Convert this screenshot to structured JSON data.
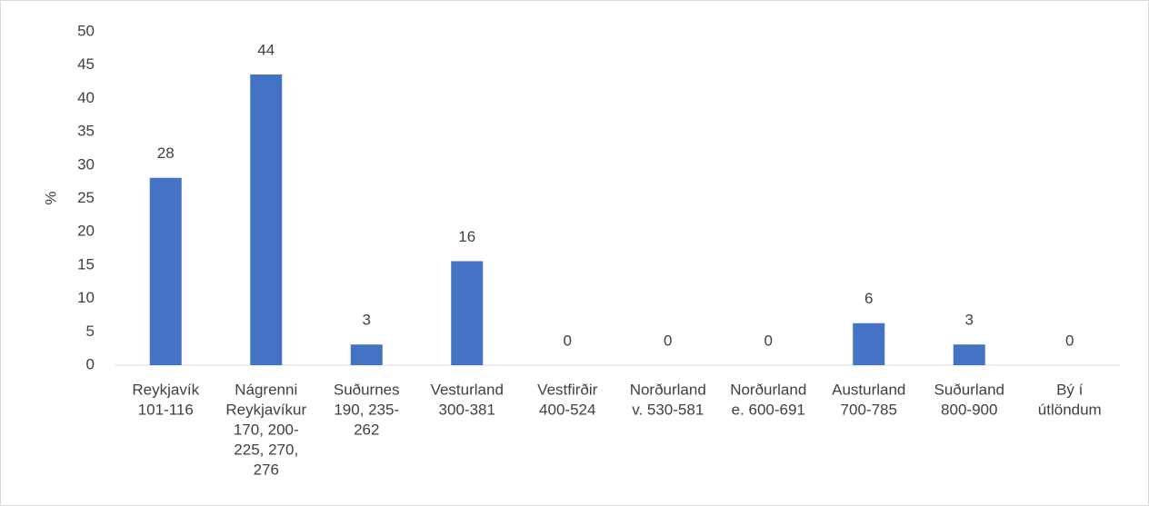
{
  "chart_data": {
    "type": "bar",
    "y_label": "%",
    "categories": [
      [
        "Reykjavík",
        "101-116"
      ],
      [
        "Nágrenni",
        "Reykjavíkur",
        "170, 200-",
        "225, 270,",
        "276"
      ],
      [
        "Suðurnes",
        "190, 235-",
        "262"
      ],
      [
        "Vesturland",
        "300-381"
      ],
      [
        "Vestfirðir",
        "400-524"
      ],
      [
        "Norðurland",
        "v. 530-581"
      ],
      [
        "Norðurland",
        "e. 600-691"
      ],
      [
        "Austurland",
        "700-785"
      ],
      [
        "Suðurland",
        "800-900"
      ],
      [
        "Bý í",
        "útlöndum"
      ]
    ],
    "values": [
      28.1,
      43.6,
      3.1,
      15.6,
      0,
      0,
      0,
      6.3,
      3.1,
      0
    ],
    "value_labels": [
      "28",
      "44",
      "3",
      "16",
      "0",
      "0",
      "0",
      "6",
      "3",
      "0"
    ],
    "color": "#4472c4",
    "ylim": [
      0,
      50
    ],
    "yticks": [
      0,
      5,
      10,
      15,
      20,
      25,
      30,
      35,
      40,
      45,
      50
    ],
    "grid": false
  }
}
